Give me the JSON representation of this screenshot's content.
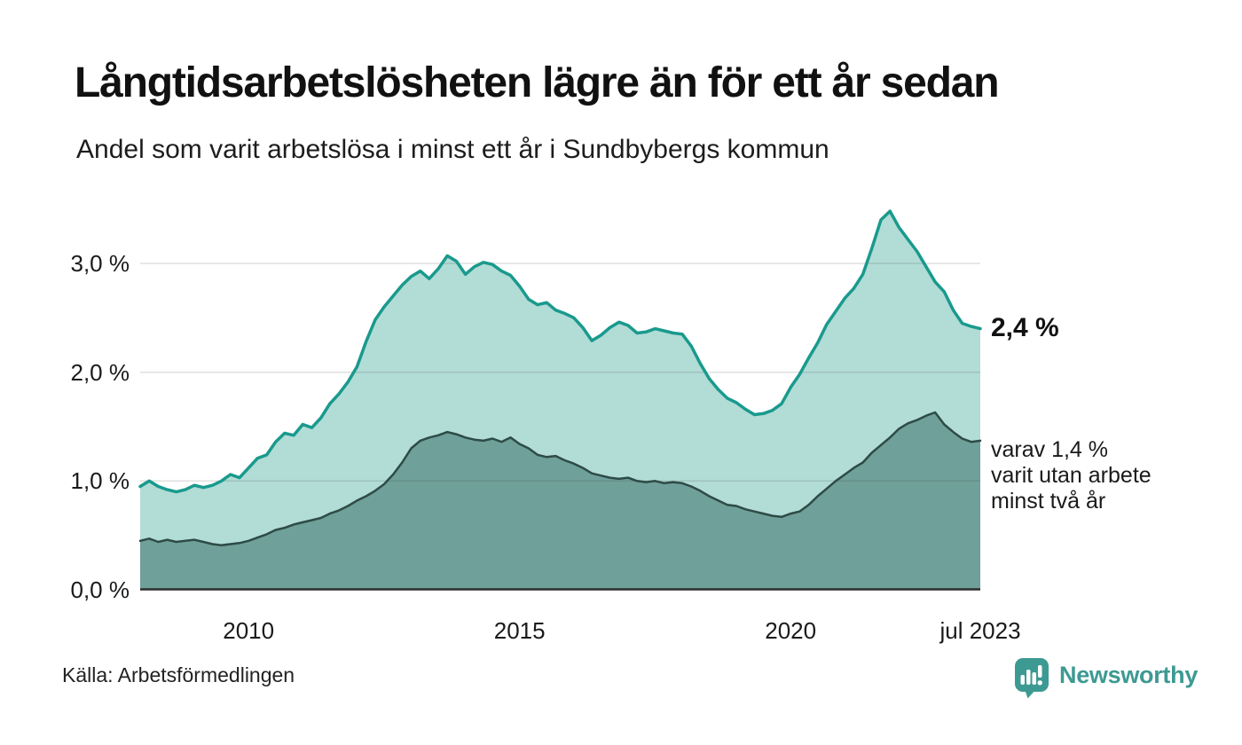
{
  "header": {
    "title": "Långtidsarbetslösheten lägre än för ett år sedan",
    "subtitle": "Andel som varit arbetslösa i minst ett år i Sundbybergs kommun"
  },
  "chart_data": {
    "type": "area",
    "title": "Långtidsarbetslösheten lägre än för ett år sedan",
    "subtitle": "Andel som varit arbetslösa i minst ett år i Sundbybergs kommun",
    "source": "Källa: Arbetsförmedlingen",
    "x_range": [
      2008,
      2023.5
    ],
    "x_step_months": 2,
    "ylim": [
      0,
      3.6
    ],
    "grid": true,
    "legend": "none",
    "y_ticks": [
      {
        "value": 0,
        "label": "0,0 %"
      },
      {
        "value": 1,
        "label": "1,0 %"
      },
      {
        "value": 2,
        "label": "2,0 %"
      },
      {
        "value": 3,
        "label": "3,0 %"
      }
    ],
    "x_ticks": [
      {
        "value": 2010,
        "label": "2010"
      },
      {
        "value": 2015,
        "label": "2015"
      },
      {
        "value": 2020,
        "label": "2020"
      },
      {
        "value": 2023.5,
        "label": "jul 2023"
      }
    ],
    "series": [
      {
        "name": "Andel som varit arbetslösa i minst ett år",
        "color": "#199a8d",
        "fill": "#b2dcd6",
        "stroke_width": 3.5,
        "end_value_label": "2,4 %",
        "values": [
          0.95,
          1.0,
          0.95,
          0.92,
          0.9,
          0.92,
          0.96,
          0.94,
          0.96,
          1.0,
          1.06,
          1.03,
          1.12,
          1.21,
          1.24,
          1.36,
          1.44,
          1.42,
          1.52,
          1.49,
          1.58,
          1.71,
          1.8,
          1.91,
          2.05,
          2.28,
          2.48,
          2.6,
          2.7,
          2.8,
          2.88,
          2.93,
          2.86,
          2.95,
          3.07,
          3.02,
          2.9,
          2.97,
          3.01,
          2.99,
          2.93,
          2.89,
          2.79,
          2.67,
          2.62,
          2.64,
          2.57,
          2.54,
          2.5,
          2.41,
          2.29,
          2.34,
          2.41,
          2.46,
          2.43,
          2.36,
          2.37,
          2.4,
          2.38,
          2.36,
          2.35,
          2.24,
          2.08,
          1.94,
          1.84,
          1.76,
          1.72,
          1.66,
          1.61,
          1.62,
          1.65,
          1.71,
          1.86,
          1.98,
          2.13,
          2.27,
          2.44,
          2.56,
          2.68,
          2.77,
          2.9,
          3.14,
          3.4,
          3.48,
          3.33,
          3.22,
          3.11,
          2.97,
          2.83,
          2.74,
          2.57,
          2.45,
          2.42,
          2.4
        ]
      },
      {
        "name": "Varav varit utan arbete minst två år",
        "color": "#2e4b46",
        "fill": "#6fa09a",
        "stroke_width": 2.5,
        "end_value_label": "1,4 %",
        "values": [
          0.45,
          0.47,
          0.44,
          0.46,
          0.44,
          0.45,
          0.46,
          0.44,
          0.42,
          0.41,
          0.42,
          0.43,
          0.45,
          0.48,
          0.51,
          0.55,
          0.57,
          0.6,
          0.62,
          0.64,
          0.66,
          0.7,
          0.73,
          0.77,
          0.82,
          0.86,
          0.91,
          0.97,
          1.06,
          1.17,
          1.3,
          1.37,
          1.4,
          1.42,
          1.45,
          1.43,
          1.4,
          1.38,
          1.37,
          1.39,
          1.36,
          1.4,
          1.34,
          1.3,
          1.24,
          1.22,
          1.23,
          1.19,
          1.16,
          1.12,
          1.07,
          1.05,
          1.03,
          1.02,
          1.03,
          1.0,
          0.99,
          1.0,
          0.98,
          0.99,
          0.98,
          0.95,
          0.91,
          0.86,
          0.82,
          0.78,
          0.77,
          0.74,
          0.72,
          0.7,
          0.68,
          0.67,
          0.7,
          0.72,
          0.78,
          0.86,
          0.93,
          1.0,
          1.06,
          1.12,
          1.17,
          1.26,
          1.33,
          1.4,
          1.48,
          1.53,
          1.56,
          1.6,
          1.63,
          1.52,
          1.45,
          1.39,
          1.36,
          1.37
        ]
      }
    ],
    "annotations": {
      "series1_end": "2,4 %",
      "series2_end_lines": [
        "varav 1,4 %",
        "varit utan arbete",
        "minst två år"
      ]
    }
  },
  "footer": {
    "source": "Källa: Arbetsförmedlingen",
    "logo_text": "Newsworthy"
  },
  "colors": {
    "accent_teal": "#199a8d",
    "light_fill": "#b2dcd6",
    "dark_fill": "#6fa09a",
    "dark_line": "#2e4b46",
    "logo_teal": "#3d9a93",
    "grid": "#dcdcdc",
    "baseline": "#2d2d2d"
  }
}
